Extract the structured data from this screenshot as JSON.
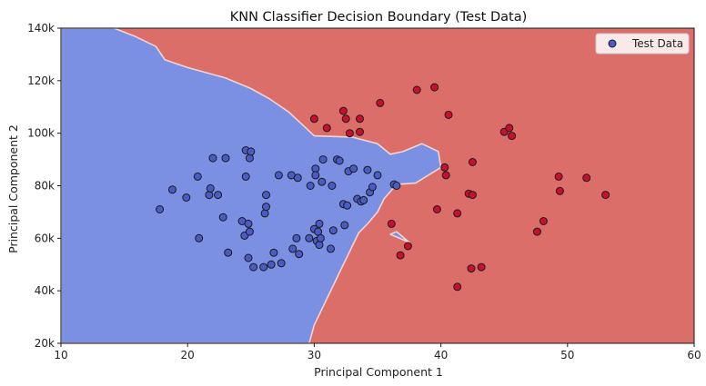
{
  "chart_data": {
    "type": "scatter",
    "title": "KNN Classifier Decision Boundary (Test Data)",
    "xlabel": "Principal Component 1",
    "ylabel": "Principal Component 2",
    "xlim": [
      10,
      60
    ],
    "ylim": [
      20000,
      140000
    ],
    "x_ticks": [
      10,
      20,
      30,
      40,
      50,
      60
    ],
    "x_tick_labels": [
      "10",
      "20",
      "30",
      "40",
      "50",
      "60"
    ],
    "y_ticks": [
      20000,
      40000,
      60000,
      80000,
      100000,
      120000,
      140000
    ],
    "y_tick_labels": [
      "20k",
      "40k",
      "60k",
      "80k",
      "100k",
      "120k",
      "140k"
    ],
    "grid": false,
    "legend": {
      "position": "top-right",
      "entries": [
        "Test Data"
      ]
    },
    "colors": {
      "class_0_region": "#7b8fe3",
      "class_1_region": "#dc6e6a",
      "boundary": "#f0d5d2",
      "class_0_point": "#4a5cc4",
      "class_1_point": "#c8102e",
      "point_edge": "#1a1a1a"
    },
    "regions": [
      {
        "class": 0,
        "polygon": [
          [
            10,
            140000
          ],
          [
            14.2,
            140000
          ],
          [
            15.8,
            137000
          ],
          [
            17.5,
            133000
          ],
          [
            18.2,
            128000
          ],
          [
            20,
            125000
          ],
          [
            23,
            121000
          ],
          [
            25,
            117000
          ],
          [
            26.5,
            113000
          ],
          [
            28,
            108000
          ],
          [
            30,
            99000
          ],
          [
            33,
            98500
          ],
          [
            35,
            96000
          ],
          [
            36,
            92000
          ],
          [
            37,
            93000
          ],
          [
            38.5,
            96000
          ],
          [
            39.8,
            93000
          ],
          [
            40,
            87000
          ],
          [
            38,
            81000
          ],
          [
            36.5,
            80500
          ],
          [
            35.5,
            75000
          ],
          [
            35,
            70000
          ],
          [
            34.3,
            66000
          ],
          [
            33.5,
            62000
          ],
          [
            33,
            57000
          ],
          [
            32.5,
            52000
          ],
          [
            32,
            47000
          ],
          [
            31.5,
            42000
          ],
          [
            31,
            37000
          ],
          [
            30.5,
            32000
          ],
          [
            30,
            27000
          ],
          [
            29.6,
            20000
          ],
          [
            10,
            20000
          ]
        ]
      },
      {
        "class": 0,
        "polygon": [
          [
            36,
            61500
          ],
          [
            37.5,
            58500
          ],
          [
            36.5,
            62500
          ]
        ]
      }
    ],
    "series": [
      {
        "name": "Test Data",
        "class_0_points": [
          [
            17.8,
            71000
          ],
          [
            18.8,
            78500
          ],
          [
            19.9,
            75500
          ],
          [
            20.8,
            83500
          ],
          [
            20.9,
            60000
          ],
          [
            21.7,
            76500
          ],
          [
            21.8,
            79000
          ],
          [
            22,
            90500
          ],
          [
            22.4,
            76500
          ],
          [
            22.8,
            68000
          ],
          [
            23,
            90500
          ],
          [
            23.2,
            54500
          ],
          [
            24.3,
            66500
          ],
          [
            24.5,
            61000
          ],
          [
            24.6,
            83500
          ],
          [
            24.6,
            93500
          ],
          [
            24.8,
            65500
          ],
          [
            24.8,
            52500
          ],
          [
            24.9,
            90500
          ],
          [
            24.9,
            62500
          ],
          [
            25,
            93000
          ],
          [
            25.2,
            49000
          ],
          [
            26,
            49000
          ],
          [
            26.1,
            69500
          ],
          [
            26.2,
            72000
          ],
          [
            26.2,
            76500
          ],
          [
            26.6,
            50000
          ],
          [
            26.8,
            54500
          ],
          [
            27.2,
            84000
          ],
          [
            27.4,
            50500
          ],
          [
            28.2,
            84000
          ],
          [
            28.3,
            56000
          ],
          [
            28.6,
            60000
          ],
          [
            28.7,
            83000
          ],
          [
            28.8,
            54000
          ],
          [
            29.6,
            60000
          ],
          [
            29.7,
            80000
          ],
          [
            30,
            63500
          ],
          [
            30.1,
            86500
          ],
          [
            30.1,
            84000
          ],
          [
            30.2,
            59000
          ],
          [
            30.3,
            62500
          ],
          [
            30.4,
            65500
          ],
          [
            30.4,
            57500
          ],
          [
            30.5,
            60000
          ],
          [
            30.6,
            81500
          ],
          [
            30.7,
            90000
          ],
          [
            31.3,
            56000
          ],
          [
            31.4,
            80000
          ],
          [
            31.5,
            63000
          ],
          [
            31.8,
            90000
          ],
          [
            32,
            89500
          ],
          [
            32.3,
            73000
          ],
          [
            32.4,
            65000
          ],
          [
            32.6,
            72500
          ],
          [
            32.7,
            85500
          ],
          [
            33.1,
            86500
          ],
          [
            33.4,
            75000
          ],
          [
            33.7,
            74000
          ],
          [
            33.9,
            74500
          ],
          [
            34.2,
            86000
          ],
          [
            34.4,
            77500
          ],
          [
            34.6,
            79500
          ],
          [
            35,
            84000
          ],
          [
            36.3,
            80500
          ],
          [
            36.5,
            80000
          ]
        ],
        "class_1_points": [
          [
            30,
            105500
          ],
          [
            31,
            102000
          ],
          [
            32.3,
            108500
          ],
          [
            32.5,
            105500
          ],
          [
            32.8,
            100000
          ],
          [
            33.6,
            105500
          ],
          [
            33.6,
            100500
          ],
          [
            35.2,
            111500
          ],
          [
            36.1,
            65500
          ],
          [
            36.8,
            53500
          ],
          [
            37.4,
            57000
          ],
          [
            38.1,
            116500
          ],
          [
            39.5,
            117500
          ],
          [
            39.7,
            71000
          ],
          [
            40.3,
            87000
          ],
          [
            40.4,
            84000
          ],
          [
            40.6,
            107000
          ],
          [
            41.3,
            69500
          ],
          [
            41.3,
            41500
          ],
          [
            42.2,
            77000
          ],
          [
            42.4,
            48500
          ],
          [
            42.5,
            76500
          ],
          [
            42.5,
            89000
          ],
          [
            43.2,
            49000
          ],
          [
            45,
            100500
          ],
          [
            45.4,
            102000
          ],
          [
            45.6,
            99000
          ],
          [
            47.6,
            62500
          ],
          [
            48.1,
            66500
          ],
          [
            49.3,
            83500
          ],
          [
            49.4,
            78000
          ],
          [
            51.5,
            83000
          ],
          [
            53,
            76500
          ]
        ]
      }
    ]
  }
}
